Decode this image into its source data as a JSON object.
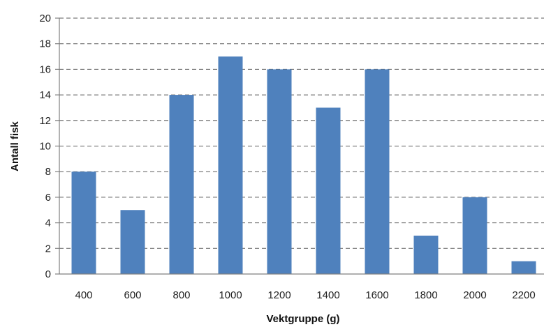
{
  "chart_data": {
    "type": "bar",
    "title": "",
    "xlabel": "Vektgruppe (g)",
    "ylabel": "Antall fisk",
    "categories": [
      "400",
      "600",
      "800",
      "1000",
      "1200",
      "1400",
      "1600",
      "1800",
      "2000",
      "2200"
    ],
    "values": [
      8,
      5,
      14,
      17,
      16,
      13,
      16,
      3,
      6,
      1
    ],
    "ylim": [
      0,
      20
    ],
    "yticks": [
      "0",
      "2",
      "4",
      "6",
      "8",
      "10",
      "12",
      "14",
      "16",
      "18",
      "20"
    ],
    "grid": true,
    "legend": "none",
    "bar_color": "#4f81bd"
  }
}
